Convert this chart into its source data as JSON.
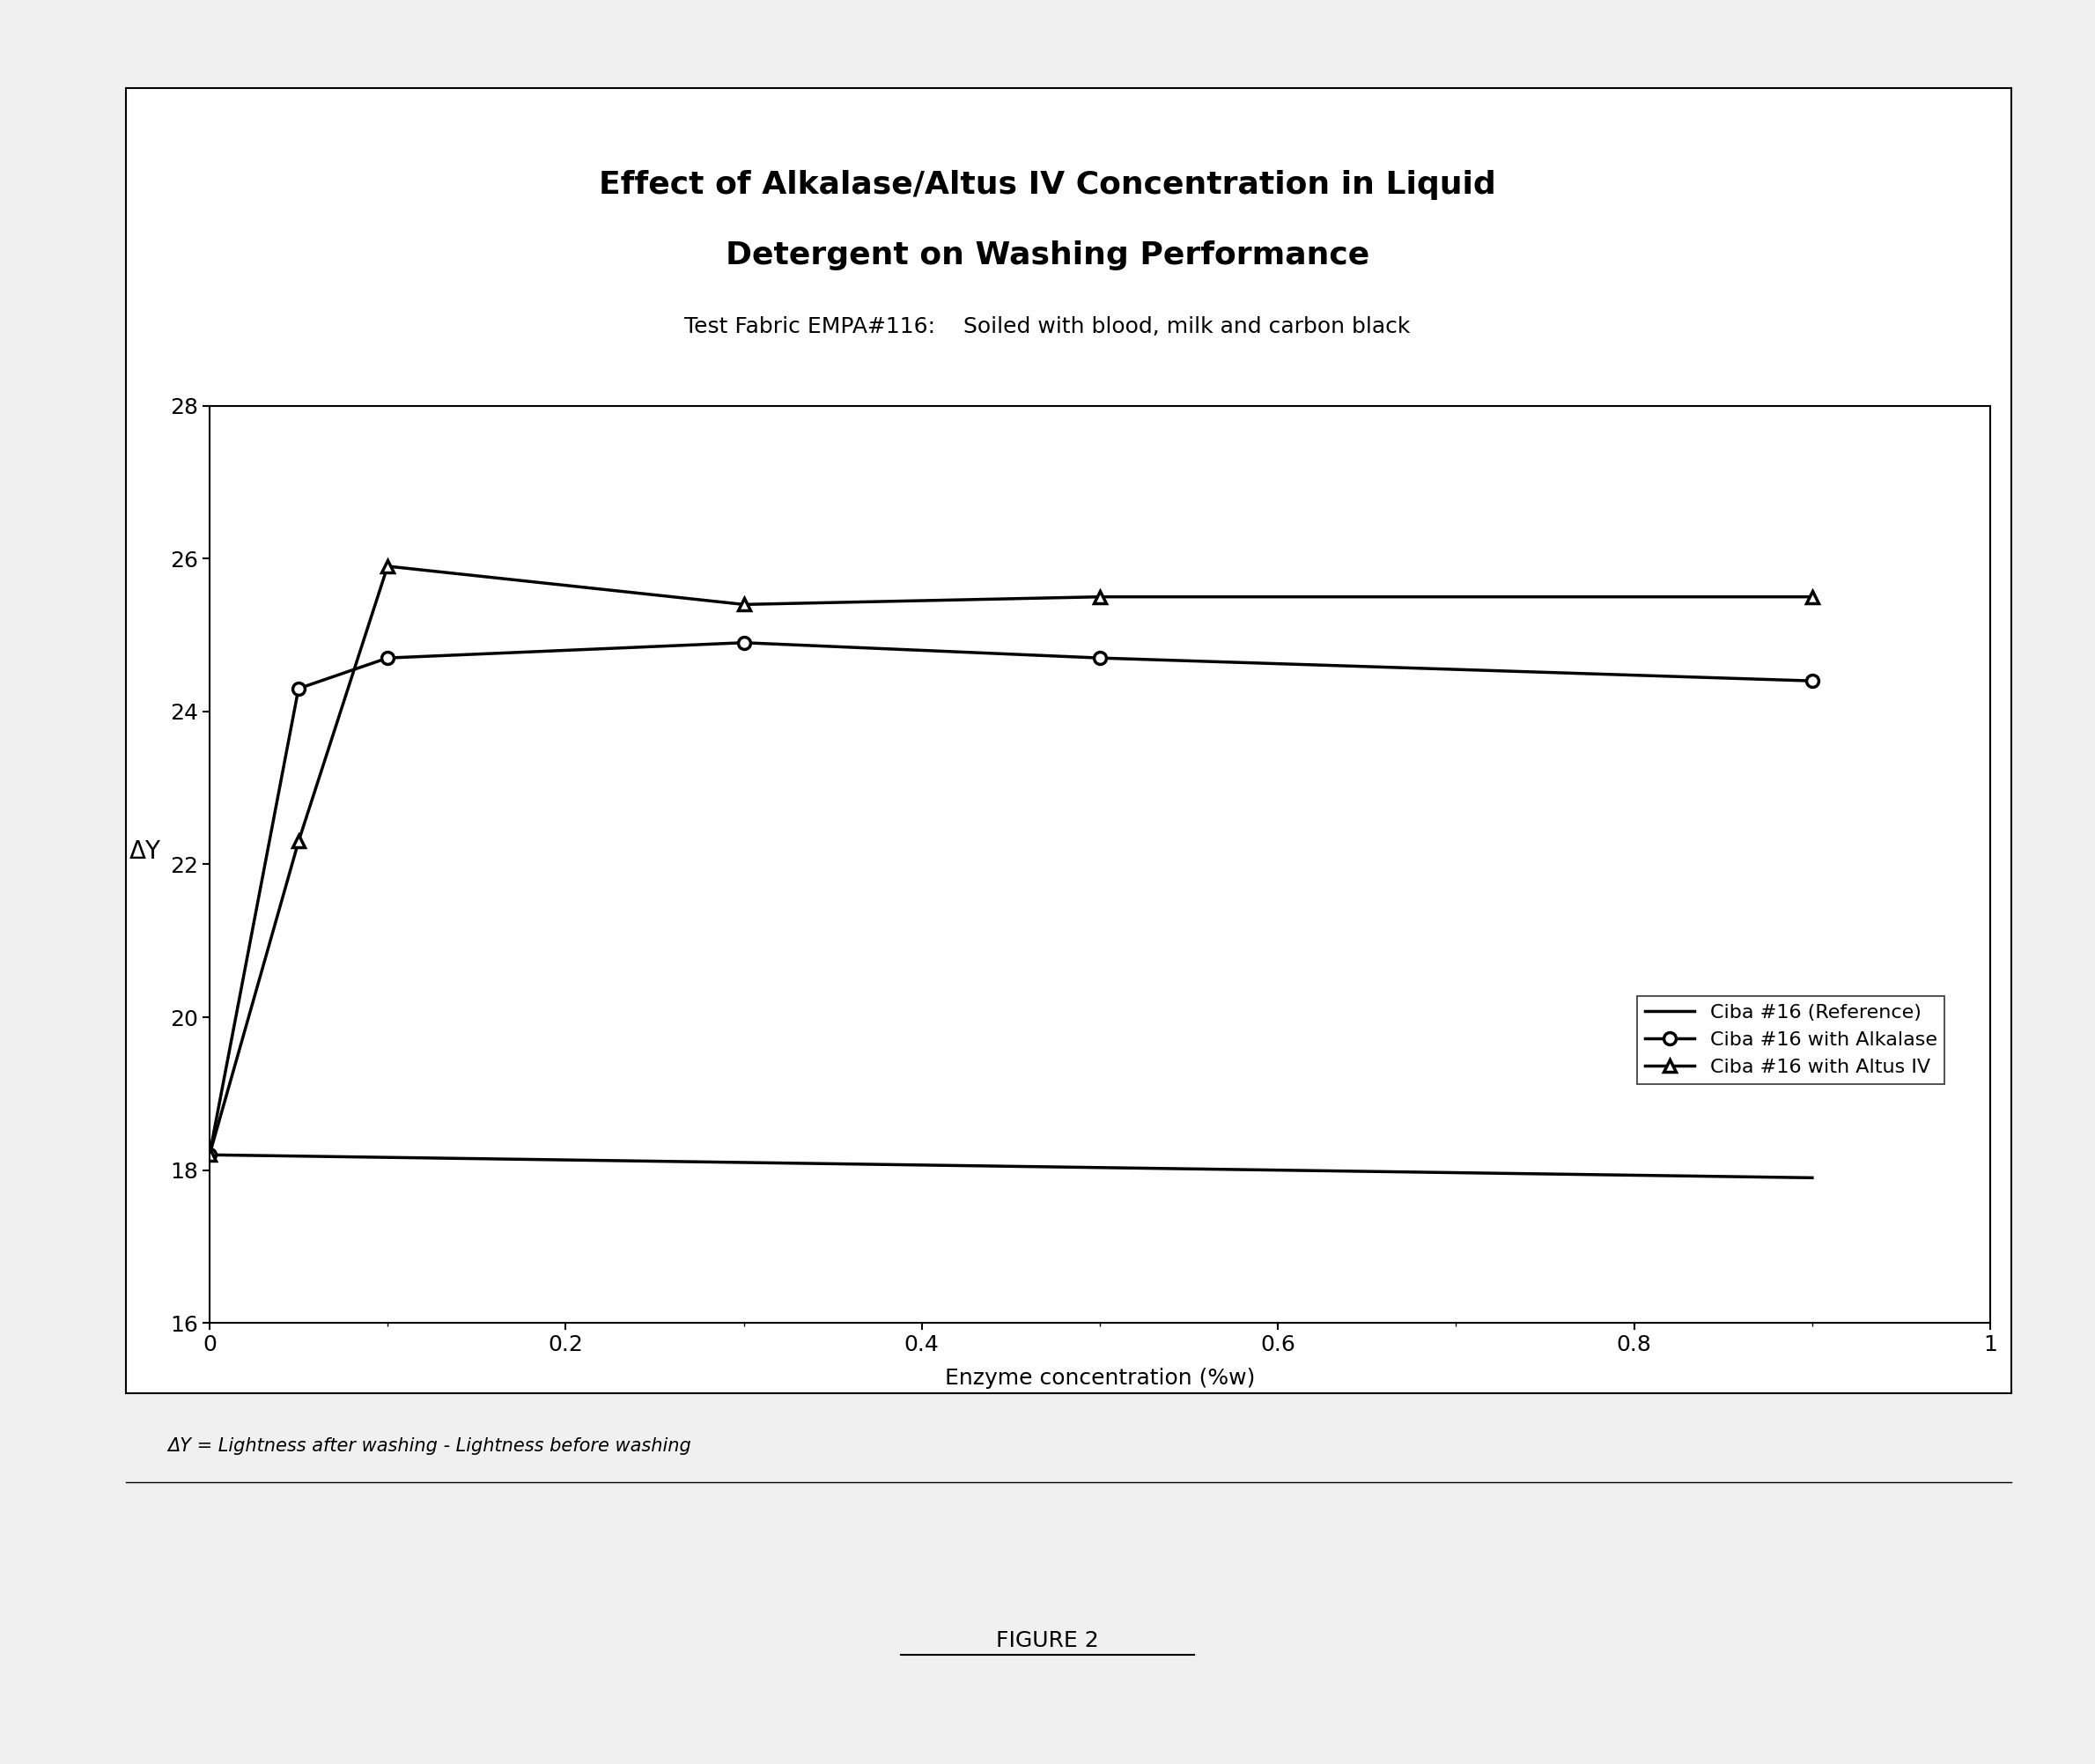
{
  "title_line1": "Effect of Alkalase/Altus IV Concentration in Liquid",
  "title_line2": "Detergent on Washing Performance",
  "subtitle": "Test Fabric EMPA#116:    Soiled with blood, milk and carbon black",
  "xlabel": "Enzyme concentration (%w)",
  "ylabel": "ΔY",
  "footnote": "ΔY = Lightness after washing - Lightness before washing",
  "figure_label": "FIGURE 2",
  "xlim": [
    0,
    1.0
  ],
  "ylim": [
    16,
    28
  ],
  "yticks": [
    16,
    18,
    20,
    22,
    24,
    26,
    28
  ],
  "xtick_labels": [
    "0",
    "0.2",
    "0.4",
    "0.6",
    "0.8",
    "1"
  ],
  "xticks": [
    0,
    0.2,
    0.4,
    0.6,
    0.8,
    1.0
  ],
  "series": [
    {
      "label": "Ciba #16 (Reference)",
      "x": [
        0,
        0.9
      ],
      "y": [
        18.2,
        17.9
      ],
      "marker": null,
      "linestyle": "-",
      "color": "#000000",
      "linewidth": 2.5
    },
    {
      "label": "Ciba #16 with Alkalase",
      "x": [
        0,
        0.05,
        0.1,
        0.3,
        0.5,
        0.9
      ],
      "y": [
        18.2,
        24.3,
        24.7,
        24.9,
        24.7,
        24.4
      ],
      "marker": "o",
      "linestyle": "-",
      "color": "#000000",
      "linewidth": 2.5
    },
    {
      "label": "Ciba #16 with Altus IV",
      "x": [
        0,
        0.05,
        0.1,
        0.3,
        0.5,
        0.9
      ],
      "y": [
        18.2,
        22.3,
        25.9,
        25.4,
        25.5,
        25.5
      ],
      "marker": "^",
      "linestyle": "-",
      "color": "#000000",
      "linewidth": 2.5
    }
  ],
  "background_color": "#f0f0f0",
  "plot_bg_color": "#ffffff",
  "title_fontsize": 26,
  "subtitle_fontsize": 18,
  "axis_label_fontsize": 18,
  "tick_fontsize": 18,
  "legend_fontsize": 16,
  "footnote_fontsize": 15,
  "figure_label_fontsize": 18
}
